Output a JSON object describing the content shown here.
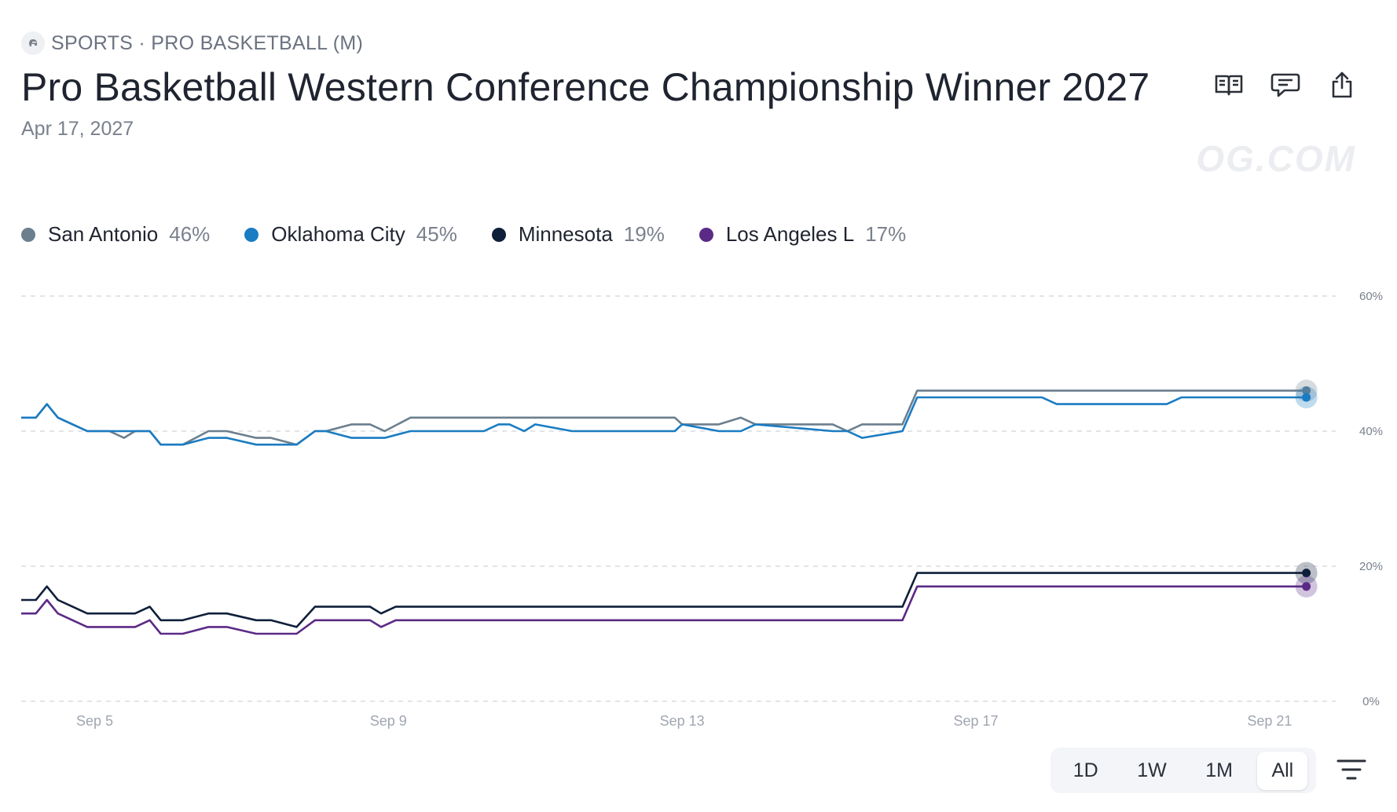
{
  "header": {
    "category": "SPORTS · PRO BASKETBALL (M)",
    "title": "Pro Basketball Western Conference Championship Winner 2027",
    "date": "Apr 17, 2027",
    "watermark": "OG.COM"
  },
  "icons": {
    "category": "basketball-helmet-icon",
    "rules": "book-icon",
    "comments": "chat-icon",
    "share": "share-icon",
    "filter": "filter-icon"
  },
  "legend": [
    {
      "name": "San Antonio",
      "value": "46%",
      "color": "#6b7f8e"
    },
    {
      "name": "Oklahoma City",
      "value": "45%",
      "color": "#1a7cc2"
    },
    {
      "name": "Minnesota",
      "value": "19%",
      "color": "#0f1f3a"
    },
    {
      "name": "Los Angeles L",
      "value": "17%",
      "color": "#5b2a86"
    }
  ],
  "range_buttons": [
    {
      "label": "1D",
      "active": false
    },
    {
      "label": "1W",
      "active": false
    },
    {
      "label": "1M",
      "active": false
    },
    {
      "label": "All",
      "active": true
    }
  ],
  "chart_data": {
    "type": "line",
    "x_unit": "day",
    "ylim": [
      0,
      60
    ],
    "xlim": [
      4.0,
      21.9
    ],
    "y_ticks": [
      {
        "value": 0,
        "label": "0%"
      },
      {
        "value": 20,
        "label": "20%"
      },
      {
        "value": 40,
        "label": "40%"
      },
      {
        "value": 60,
        "label": "60%"
      }
    ],
    "x_ticks": [
      {
        "value": 5,
        "label": "Sep 5"
      },
      {
        "value": 9,
        "label": "Sep 9"
      },
      {
        "value": 13,
        "label": "Sep 13"
      },
      {
        "value": 17,
        "label": "Sep 17"
      },
      {
        "value": 21,
        "label": "Sep 21"
      }
    ],
    "grid": true,
    "legend_position": "top-left",
    "series": [
      {
        "name": "San Antonio",
        "color": "#6b7f8e",
        "x": [
          4.0,
          4.2,
          4.35,
          4.5,
          4.7,
          4.9,
          5.2,
          5.4,
          5.55,
          5.75,
          5.9,
          6.2,
          6.55,
          6.8,
          7.2,
          7.4,
          7.75,
          8.0,
          8.15,
          8.5,
          8.75,
          8.95,
          9.3,
          9.55,
          9.7,
          10.3,
          11.0,
          12.0,
          12.9,
          13.0,
          13.5,
          13.8,
          14.0,
          14.5,
          14.9,
          15.05,
          15.25,
          15.45,
          16.0,
          16.2,
          17.0,
          20.0,
          21.5
        ],
        "y": [
          42,
          42,
          44,
          42,
          41,
          40,
          40,
          39,
          40,
          40,
          38,
          38,
          40,
          40,
          39,
          39,
          38,
          40,
          40,
          41,
          41,
          40,
          42,
          42,
          42,
          42,
          42,
          42,
          42,
          41,
          41,
          42,
          41,
          41,
          41,
          41,
          40,
          41,
          41,
          46,
          46,
          46,
          46
        ]
      },
      {
        "name": "Oklahoma City",
        "color": "#1a7cc2",
        "x": [
          4.0,
          4.2,
          4.35,
          4.5,
          4.7,
          4.9,
          5.2,
          5.55,
          5.75,
          5.9,
          6.2,
          6.55,
          6.8,
          7.2,
          7.4,
          7.75,
          8.0,
          8.15,
          8.5,
          8.75,
          8.95,
          9.3,
          9.55,
          10.0,
          10.3,
          10.5,
          10.65,
          10.85,
          11.0,
          11.5,
          12.0,
          12.9,
          13.0,
          13.5,
          13.8,
          14.0,
          15.05,
          15.25,
          15.45,
          16.0,
          16.2,
          17.0,
          17.9,
          18.1,
          19.6,
          19.8,
          21.5
        ],
        "y": [
          42,
          42,
          44,
          42,
          41,
          40,
          40,
          40,
          40,
          38,
          38,
          39,
          39,
          38,
          38,
          38,
          40,
          40,
          39,
          39,
          39,
          40,
          40,
          40,
          40,
          41,
          41,
          40,
          41,
          40,
          40,
          40,
          41,
          40,
          40,
          41,
          40,
          40,
          39,
          40,
          45,
          45,
          45,
          44,
          44,
          45,
          45
        ]
      },
      {
        "name": "Minnesota",
        "color": "#0f1f3a",
        "x": [
          4.0,
          4.2,
          4.35,
          4.5,
          4.7,
          4.9,
          5.2,
          5.55,
          5.75,
          5.9,
          6.2,
          6.55,
          6.8,
          7.2,
          7.4,
          7.75,
          8.0,
          8.15,
          8.5,
          8.75,
          8.9,
          9.1,
          9.4,
          10.0,
          12.0,
          14.0,
          16.0,
          16.2,
          17.0,
          21.5
        ],
        "y": [
          15,
          15,
          17,
          15,
          14,
          13,
          13,
          13,
          14,
          12,
          12,
          13,
          13,
          12,
          12,
          11,
          14,
          14,
          14,
          14,
          13,
          14,
          14,
          14,
          14,
          14,
          14,
          19,
          19,
          19
        ]
      },
      {
        "name": "Los Angeles L",
        "color": "#5b2a86",
        "x": [
          4.0,
          4.2,
          4.35,
          4.5,
          4.7,
          4.9,
          5.2,
          5.55,
          5.75,
          5.9,
          6.2,
          6.55,
          6.8,
          7.2,
          7.4,
          7.75,
          8.0,
          8.15,
          8.5,
          8.75,
          8.9,
          9.1,
          9.4,
          10.0,
          12.0,
          14.0,
          16.0,
          16.2,
          17.0,
          21.5
        ],
        "y": [
          13,
          13,
          15,
          13,
          12,
          11,
          11,
          11,
          12,
          10,
          10,
          11,
          11,
          10,
          10,
          10,
          12,
          12,
          12,
          12,
          11,
          12,
          12,
          12,
          12,
          12,
          12,
          17,
          17,
          17
        ]
      }
    ]
  }
}
